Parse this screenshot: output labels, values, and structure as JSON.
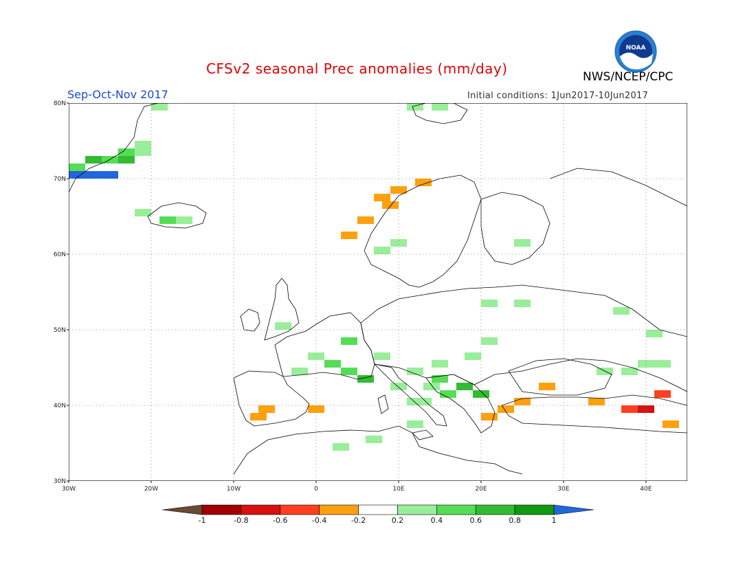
{
  "header": {
    "title": "CFSv2 seasonal Prec anomalies (mm/day)",
    "season": "Sep-Oct-Nov 2017",
    "initial_conditions": "Initial conditions: 1Jun2017-10Jun2017",
    "agency": "NWS/NCEP/CPC",
    "logo_text": "NOAA"
  },
  "map": {
    "lon_range": [
      -30,
      45
    ],
    "lat_range": [
      30,
      80
    ],
    "lat_labels": [
      "80N",
      "70N",
      "60N",
      "50N",
      "40N",
      "30N"
    ],
    "lon_labels": [
      "30W",
      "20W",
      "10W",
      "0",
      "10E",
      "20E",
      "30E",
      "40E"
    ]
  },
  "colorbar": {
    "colors": [
      "#6b4a34",
      "#a00000",
      "#d81010",
      "#ff4020",
      "#ffa010",
      "#ffffff",
      "#99ee99",
      "#55dd55",
      "#33bb33",
      "#119911",
      "#2266dd"
    ],
    "labels": [
      "-1",
      "-0.8",
      "-0.6",
      "-0.4",
      "-0.2",
      "0.2",
      "0.4",
      "0.6",
      "0.8",
      "1"
    ]
  },
  "anomaly_cells": [
    {
      "lon": -29,
      "lat": 70.5,
      "v": 1.1
    },
    {
      "lon": -27,
      "lat": 70.5,
      "v": 1.1
    },
    {
      "lon": -25,
      "lat": 70.5,
      "v": 1.1
    },
    {
      "lon": -29,
      "lat": 71.5,
      "v": 0.5
    },
    {
      "lon": -27,
      "lat": 72.5,
      "v": 0.7
    },
    {
      "lon": -25,
      "lat": 72.5,
      "v": 0.5
    },
    {
      "lon": -23,
      "lat": 72.5,
      "v": 0.7
    },
    {
      "lon": -23,
      "lat": 73.5,
      "v": 0.5
    },
    {
      "lon": -21,
      "lat": 73.5,
      "v": 0.3
    },
    {
      "lon": -21,
      "lat": 74.5,
      "v": 0.3
    },
    {
      "lon": -19,
      "lat": 79.5,
      "v": 0.3
    },
    {
      "lon": -21,
      "lat": 65.5,
      "v": 0.3
    },
    {
      "lon": -18,
      "lat": 64.5,
      "v": 0.5
    },
    {
      "lon": -16,
      "lat": 64.5,
      "v": 0.3
    },
    {
      "lon": 12,
      "lat": 79.5,
      "v": 0.3
    },
    {
      "lon": 15,
      "lat": 79.5,
      "v": 0.3
    },
    {
      "lon": 8,
      "lat": 67.5,
      "v": -0.3
    },
    {
      "lon": 10,
      "lat": 68.5,
      "v": -0.3
    },
    {
      "lon": 13,
      "lat": 69.5,
      "v": -0.3
    },
    {
      "lon": 6,
      "lat": 64.5,
      "v": -0.3
    },
    {
      "lon": 4,
      "lat": 62.5,
      "v": -0.3
    },
    {
      "lon": 9,
      "lat": 66.5,
      "v": -0.3
    },
    {
      "lon": 8,
      "lat": 60.5,
      "v": 0.3
    },
    {
      "lon": 10,
      "lat": 61.5,
      "v": 0.3
    },
    {
      "lon": 25,
      "lat": 61.5,
      "v": 0.3
    },
    {
      "lon": -4,
      "lat": 50.5,
      "v": 0.3
    },
    {
      "lon": 0,
      "lat": 46.5,
      "v": 0.3
    },
    {
      "lon": 2,
      "lat": 45.5,
      "v": 0.5
    },
    {
      "lon": 4,
      "lat": 44.5,
      "v": 0.5
    },
    {
      "lon": 6,
      "lat": 43.5,
      "v": 0.7
    },
    {
      "lon": -2,
      "lat": 44.5,
      "v": 0.3
    },
    {
      "lon": 4,
      "lat": 48.5,
      "v": 0.5
    },
    {
      "lon": 8,
      "lat": 46.5,
      "v": 0.3
    },
    {
      "lon": 12,
      "lat": 44.5,
      "v": 0.3
    },
    {
      "lon": 15,
      "lat": 43.5,
      "v": 0.5
    },
    {
      "lon": 18,
      "lat": 42.5,
      "v": 0.7
    },
    {
      "lon": 20,
      "lat": 41.5,
      "v": 0.7
    },
    {
      "lon": 19,
      "lat": 46.5,
      "v": 0.3
    },
    {
      "lon": 21,
      "lat": 48.5,
      "v": 0.3
    },
    {
      "lon": 21,
      "lat": 53.5,
      "v": 0.3
    },
    {
      "lon": 25,
      "lat": 53.5,
      "v": 0.3
    },
    {
      "lon": 10,
      "lat": 42.5,
      "v": 0.3
    },
    {
      "lon": 12,
      "lat": 40.5,
      "v": 0.3
    },
    {
      "lon": 3,
      "lat": 34.5,
      "v": 0.3
    },
    {
      "lon": 7,
      "lat": 35.5,
      "v": 0.3
    },
    {
      "lon": -6,
      "lat": 39.5,
      "v": -0.3
    },
    {
      "lon": -7,
      "lat": 38.5,
      "v": -0.3
    },
    {
      "lon": 0,
      "lat": 39.5,
      "v": -0.3
    },
    {
      "lon": 21,
      "lat": 38.5,
      "v": -0.3
    },
    {
      "lon": 23,
      "lat": 39.5,
      "v": -0.3
    },
    {
      "lon": 25,
      "lat": 40.5,
      "v": -0.3
    },
    {
      "lon": 28,
      "lat": 42.5,
      "v": -0.3
    },
    {
      "lon": 34,
      "lat": 40.5,
      "v": -0.3
    },
    {
      "lon": 38,
      "lat": 39.5,
      "v": -0.5
    },
    {
      "lon": 40,
      "lat": 39.5,
      "v": -0.7
    },
    {
      "lon": 42,
      "lat": 41.5,
      "v": -0.5
    },
    {
      "lon": 43,
      "lat": 37.5,
      "v": -0.3
    },
    {
      "lon": 38,
      "lat": 44.5,
      "v": 0.3
    },
    {
      "lon": 40,
      "lat": 45.5,
      "v": 0.3
    },
    {
      "lon": 42,
      "lat": 45.5,
      "v": 0.3
    },
    {
      "lon": 41,
      "lat": 49.5,
      "v": 0.3
    },
    {
      "lon": 37,
      "lat": 52.5,
      "v": 0.3
    },
    {
      "lon": 35,
      "lat": 44.5,
      "v": 0.3
    },
    {
      "lon": 12,
      "lat": 37.5,
      "v": 0.3
    },
    {
      "lon": 13,
      "lat": 40.5,
      "v": 0.3
    },
    {
      "lon": 15,
      "lat": 45.5,
      "v": 0.3
    },
    {
      "lon": 16,
      "lat": 41.5,
      "v": 0.5
    },
    {
      "lon": 14,
      "lat": 42.5,
      "v": 0.3
    }
  ]
}
